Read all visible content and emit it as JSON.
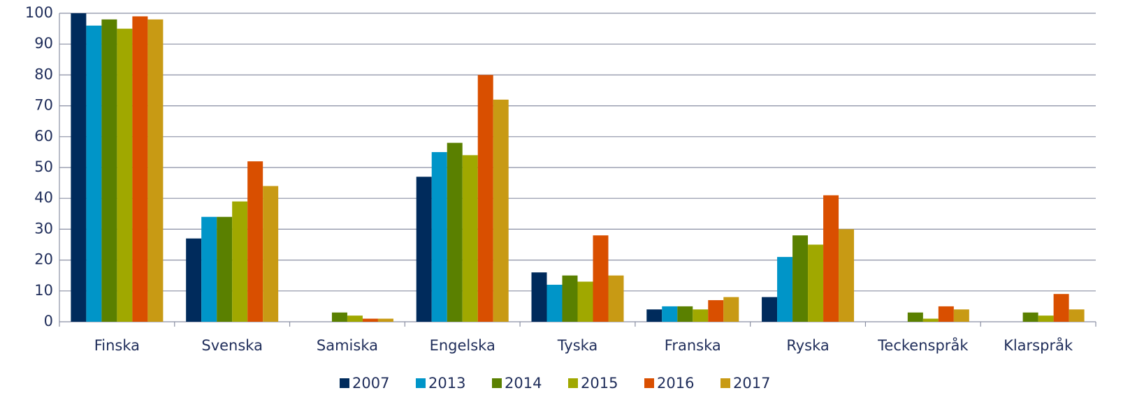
{
  "chart_data": {
    "type": "bar",
    "categories": [
      "Finska",
      "Svenska",
      "Samiska",
      "Engelska",
      "Tyska",
      "Franska",
      "Ryska",
      "Teckenspråk",
      "Klarspråk"
    ],
    "series": [
      {
        "name": "2007",
        "color": "#002b5c",
        "values": [
          100,
          27,
          null,
          47,
          16,
          4,
          8,
          null,
          null
        ]
      },
      {
        "name": "2013",
        "color": "#0095c8",
        "values": [
          96,
          34,
          null,
          55,
          12,
          5,
          21,
          null,
          null
        ]
      },
      {
        "name": "2014",
        "color": "#5a8000",
        "values": [
          98,
          34,
          3,
          58,
          15,
          5,
          28,
          3,
          3
        ]
      },
      {
        "name": "2015",
        "color": "#a0a800",
        "values": [
          95,
          39,
          2,
          54,
          13,
          4,
          25,
          1,
          2
        ]
      },
      {
        "name": "2016",
        "color": "#d94f00",
        "values": [
          99,
          52,
          1,
          80,
          28,
          7,
          41,
          5,
          9
        ]
      },
      {
        "name": "2017",
        "color": "#c89a14",
        "values": [
          98,
          44,
          1,
          72,
          15,
          8,
          30,
          4,
          4
        ]
      }
    ],
    "ylim": [
      0,
      100
    ],
    "yticks": [
      0,
      10,
      20,
      30,
      40,
      50,
      60,
      70,
      80,
      90,
      100
    ],
    "grid": true,
    "legend": "bottom"
  }
}
